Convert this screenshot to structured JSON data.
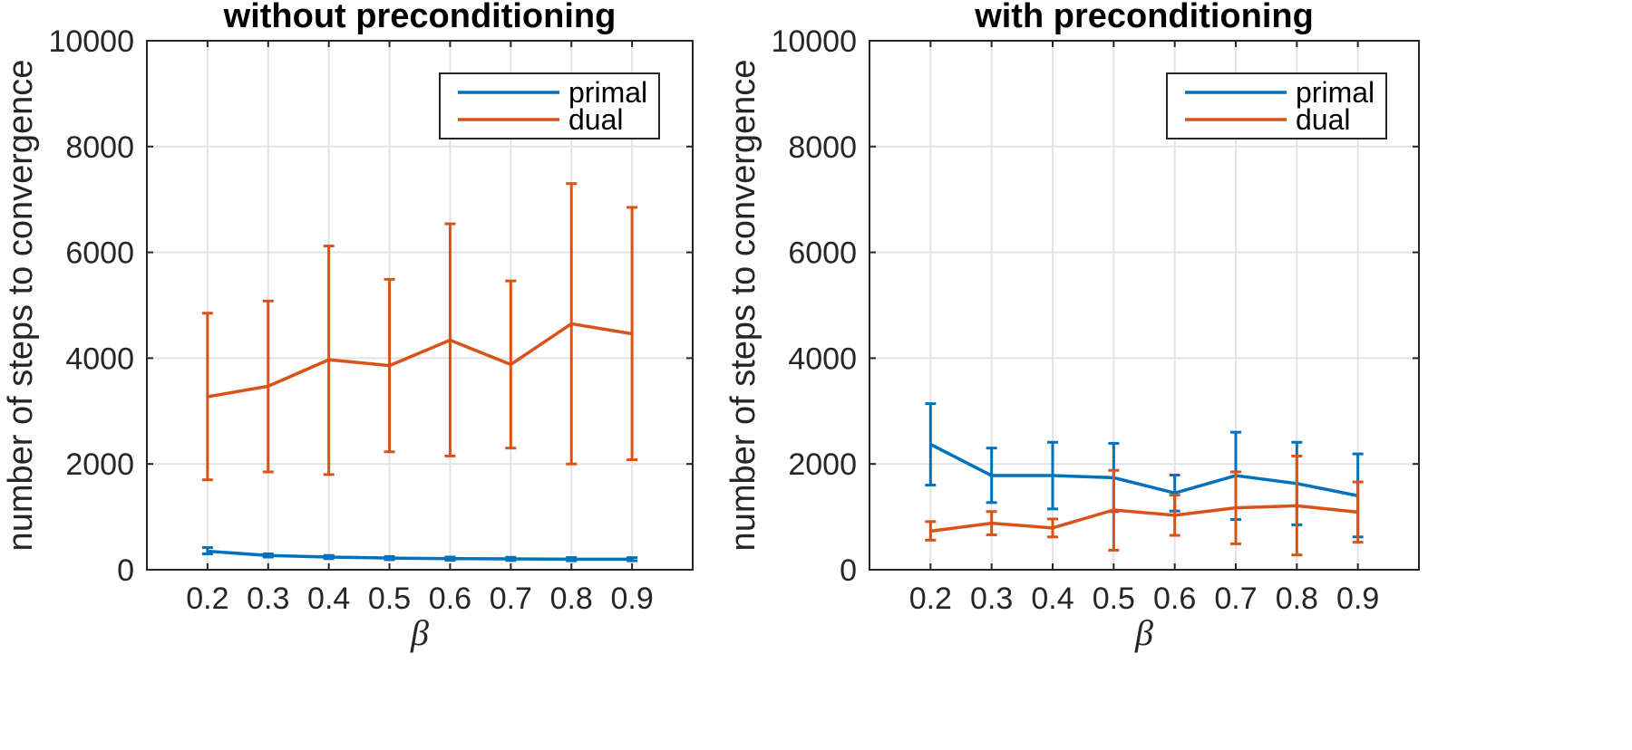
{
  "chart_data": [
    {
      "type": "line",
      "title": "without preconditioning",
      "xlabel": "β",
      "ylabel": "number of steps to convergence",
      "x": [
        0.2,
        0.3,
        0.4,
        0.5,
        0.6,
        0.7,
        0.8,
        0.9
      ],
      "x_tick_labels": [
        "0.2",
        "0.3",
        "0.4",
        "0.5",
        "0.6",
        "0.7",
        "0.8",
        "0.9"
      ],
      "y_ticks": [
        0,
        2000,
        4000,
        6000,
        8000,
        10000
      ],
      "y_tick_labels": [
        "0",
        "2000",
        "4000",
        "6000",
        "8000",
        "10000"
      ],
      "xlim": [
        0.1,
        1.0
      ],
      "ylim": [
        0,
        10000
      ],
      "grid": true,
      "legend_position": "top-right",
      "series": [
        {
          "name": "primal",
          "color": "#0072BD",
          "values": [
            350,
            270,
            240,
            220,
            210,
            205,
            200,
            200
          ],
          "err_low": [
            300,
            240,
            210,
            190,
            180,
            175,
            170,
            170
          ],
          "err_high": [
            420,
            300,
            270,
            250,
            240,
            235,
            230,
            230
          ]
        },
        {
          "name": "dual",
          "color": "#D95319",
          "values": [
            3270,
            3470,
            3970,
            3860,
            4340,
            3880,
            4650,
            4460
          ],
          "err_low": [
            1700,
            1850,
            1800,
            2230,
            2150,
            2300,
            2000,
            2080
          ],
          "err_high": [
            4850,
            5080,
            6120,
            5490,
            6540,
            5460,
            7300,
            6850
          ]
        }
      ]
    },
    {
      "type": "line",
      "title": "with preconditioning",
      "xlabel": "β",
      "ylabel": "number of steps to convergence",
      "x": [
        0.2,
        0.3,
        0.4,
        0.5,
        0.6,
        0.7,
        0.8,
        0.9
      ],
      "x_tick_labels": [
        "0.2",
        "0.3",
        "0.4",
        "0.5",
        "0.6",
        "0.7",
        "0.8",
        "0.9"
      ],
      "y_ticks": [
        0,
        2000,
        4000,
        6000,
        8000,
        10000
      ],
      "y_tick_labels": [
        "0",
        "2000",
        "4000",
        "6000",
        "8000",
        "10000"
      ],
      "xlim": [
        0.1,
        1.0
      ],
      "ylim": [
        0,
        10000
      ],
      "grid": true,
      "legend_position": "top-right",
      "series": [
        {
          "name": "primal",
          "color": "#0072BD",
          "values": [
            2370,
            1780,
            1780,
            1740,
            1450,
            1780,
            1630,
            1400
          ],
          "err_low": [
            1600,
            1270,
            1150,
            1100,
            1110,
            950,
            850,
            620
          ],
          "err_high": [
            3140,
            2300,
            2410,
            2390,
            1790,
            2600,
            2410,
            2190
          ]
        },
        {
          "name": "dual",
          "color": "#D95319",
          "values": [
            730,
            880,
            790,
            1130,
            1030,
            1170,
            1210,
            1090
          ],
          "err_low": [
            560,
            660,
            620,
            370,
            650,
            490,
            280,
            520
          ],
          "err_high": [
            910,
            1100,
            960,
            1880,
            1410,
            1850,
            2150,
            1660
          ]
        }
      ]
    }
  ]
}
